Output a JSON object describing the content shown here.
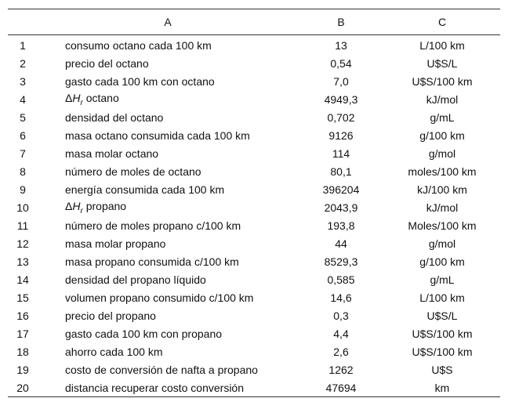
{
  "table": {
    "header": [
      "A",
      "B",
      "C"
    ],
    "rows": [
      [
        "1",
        "consumo octano cada 100 km",
        "13",
        "L/100 km"
      ],
      [
        "2",
        "precio del octano",
        "0,54",
        "U$S/L"
      ],
      [
        "3",
        "gasto cada 100 km con octano",
        "7,0",
        "U$S/100 km"
      ],
      [
        "4",
        [
          "Δ",
          "H",
          "r",
          " octano"
        ],
        "4949,3",
        "kJ/mol"
      ],
      [
        "5",
        "densidad del octano",
        "0,702",
        "g/mL"
      ],
      [
        "6",
        "masa octano consumida cada 100 km",
        "9126",
        "g/100 km"
      ],
      [
        "7",
        "masa molar octano",
        "114",
        "g/mol"
      ],
      [
        "8",
        "número de moles de octano",
        "80,1",
        "moles/100 km"
      ],
      [
        "9",
        "energía consumida cada 100 km",
        "396204",
        "kJ/100 km"
      ],
      [
        "10",
        [
          "Δ",
          "H",
          "r",
          " propano"
        ],
        "2043,9",
        "kJ/mol"
      ],
      [
        "11",
        "número de moles propano c/100 km",
        "193,8",
        "Moles/100 km"
      ],
      [
        "12",
        "masa molar propano",
        "44",
        "g/mol"
      ],
      [
        "13",
        "masa propano consumida c/100 km",
        "8529,3",
        "g/100 km"
      ],
      [
        "14",
        "densidad del propano líquido",
        "0,585",
        "g/mL"
      ],
      [
        "15",
        "volumen propano consumido c/100 km",
        "14,6",
        "L/100 km"
      ],
      [
        "16",
        "precio del propano",
        "0,3",
        "U$S/L"
      ],
      [
        "17",
        "gasto cada 100 km con propano",
        "4,4",
        "U$S/100 km"
      ],
      [
        "18",
        "ahorro cada 100 km",
        "2,6",
        "U$S/100 km"
      ],
      [
        "19",
        "costo de conversión de nafta a propano",
        "1262",
        "U$S"
      ],
      [
        "20",
        "distancia recuperar costo conversión",
        "47694",
        "km"
      ]
    ]
  }
}
